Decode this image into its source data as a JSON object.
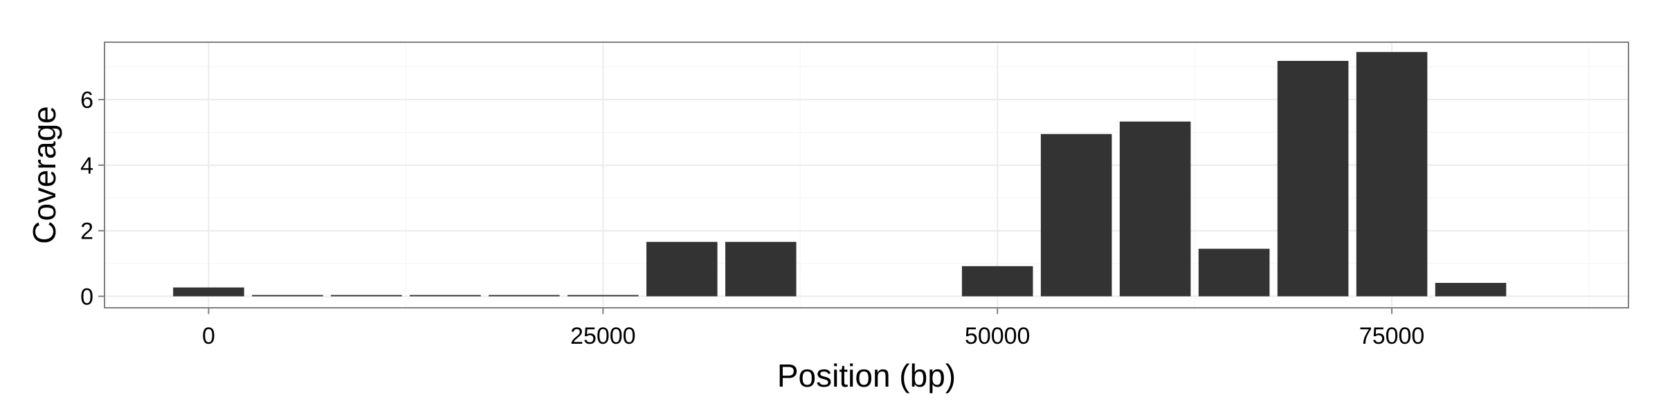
{
  "chart_data": {
    "type": "bar",
    "title": "",
    "xlabel": "Position (bp)",
    "ylabel": "Coverage",
    "xlim": [
      -6600,
      90000
    ],
    "ylim": [
      -0.35,
      7.75
    ],
    "xticks": [
      0,
      25000,
      50000,
      75000
    ],
    "xtick_labels": [
      "0",
      "25000",
      "50000",
      "75000"
    ],
    "yticks": [
      0,
      2,
      4,
      6
    ],
    "ytick_labels": [
      "0",
      "2",
      "4",
      "6"
    ],
    "x_minor_gridlines": [
      12500,
      37500,
      62500,
      87500
    ],
    "y_minor_gridlines": [
      1,
      3,
      5,
      7
    ],
    "bin_width": 5000,
    "x": [
      0,
      5000,
      10000,
      15000,
      20000,
      25000,
      30000,
      35000,
      40000,
      45000,
      50000,
      55000,
      60000,
      65000,
      70000,
      75000,
      80000
    ],
    "values": [
      0.27,
      0.04,
      0.04,
      0.04,
      0.04,
      0.04,
      1.66,
      1.66,
      0,
      0,
      0.92,
      4.95,
      5.33,
      1.45,
      7.18,
      7.45,
      0.41
    ],
    "grid": true,
    "colors": {
      "bar": "#333333",
      "panel_border": "#7f7f7f",
      "major_grid": "#ebebeb",
      "minor_grid": "#f5f5f5",
      "tick_mark": "#7f7f7f"
    }
  }
}
